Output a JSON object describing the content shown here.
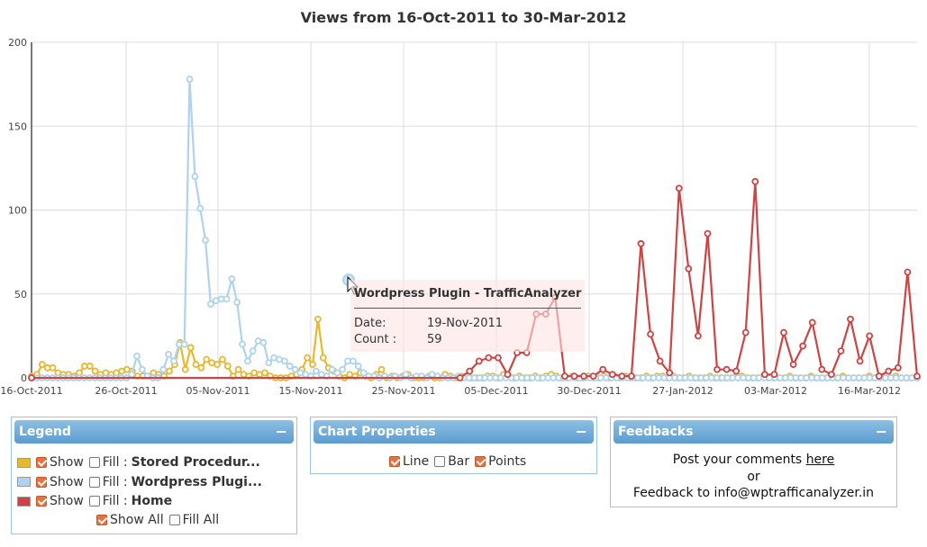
{
  "chart_data": {
    "type": "line",
    "title": "Views from 16-Oct-2011 to 30-Mar-2012",
    "xlabel": "",
    "ylabel": "",
    "ylim": [
      0,
      200
    ],
    "yticks": [
      0,
      50,
      100,
      150,
      200
    ],
    "grid": true,
    "x_start": "16-Oct-2011",
    "x_end": "30-Mar-2012",
    "xticks": [
      "16-Oct-2011",
      "26-Oct-2011",
      "05-Nov-2011",
      "15-Nov-2011",
      "25-Nov-2011",
      "05-Dec-2011",
      "30-Dec-2011",
      "27-Jan-2012",
      "03-Mar-2012",
      "16-Mar-2012"
    ],
    "series": [
      {
        "name": "Stored Procedur...",
        "color": "#e8b830",
        "values": [
          1,
          2,
          8,
          6,
          6,
          3,
          2,
          2,
          1,
          3,
          7,
          7,
          4,
          2,
          3,
          2,
          3,
          4,
          5,
          4,
          1,
          1,
          1,
          3,
          2,
          1,
          4,
          8,
          21,
          5,
          18,
          8,
          6,
          11,
          9,
          8,
          11,
          7,
          1,
          5,
          2,
          1,
          3,
          2,
          3,
          1,
          0,
          0,
          0,
          1,
          2,
          5,
          12,
          8,
          35,
          12,
          6,
          4,
          1,
          0,
          2,
          1,
          3,
          1,
          0,
          2,
          5,
          0,
          1,
          0,
          1,
          2,
          0,
          0,
          0,
          1,
          0,
          0,
          2,
          1,
          0,
          1,
          1,
          0,
          0,
          0,
          1,
          1,
          0,
          2,
          1,
          0,
          1,
          0,
          0,
          1,
          0,
          1,
          2,
          1,
          0,
          0,
          1,
          0,
          0,
          1,
          0,
          0,
          1,
          0,
          1,
          0,
          1,
          0,
          0,
          0,
          1,
          0,
          1,
          1,
          0,
          1,
          0,
          0,
          1,
          0,
          0,
          0,
          1,
          0,
          0,
          0,
          0,
          1,
          1,
          0,
          0,
          0,
          1,
          0,
          0,
          0,
          0,
          1,
          0,
          0,
          0,
          1,
          0,
          0,
          0,
          1,
          0,
          1,
          0,
          0,
          0,
          0,
          1,
          0,
          1,
          0,
          0,
          1,
          0,
          0,
          0,
          0
        ]
      },
      {
        "name": "Wordpress Plugi...",
        "color": "#aed3ec",
        "values": [
          0,
          0,
          0,
          0,
          0,
          0,
          0,
          0,
          0,
          0,
          0,
          0,
          0,
          0,
          0,
          0,
          0,
          0,
          0,
          2,
          13,
          5,
          1,
          0,
          0,
          5,
          14,
          10,
          20,
          20,
          178,
          120,
          101,
          82,
          44,
          46,
          47,
          47,
          59,
          45,
          20,
          10,
          16,
          22,
          21,
          9,
          12,
          11,
          10,
          7,
          5,
          3,
          2,
          1,
          4,
          2,
          1,
          5,
          3,
          5,
          10,
          10,
          7,
          3,
          1,
          1,
          0,
          1,
          0,
          1,
          0,
          2,
          0,
          1,
          1,
          0,
          2,
          1,
          0,
          0,
          0,
          1,
          0,
          0,
          0,
          0,
          0,
          0,
          0,
          0,
          0,
          0,
          0,
          0,
          0,
          0,
          0,
          0,
          0,
          0,
          0,
          0,
          0,
          0,
          0,
          0,
          0,
          0,
          0,
          0,
          0,
          0,
          0,
          0,
          0,
          0,
          0,
          0,
          0,
          0,
          0,
          0,
          0,
          0,
          0,
          0,
          0,
          0,
          0,
          0,
          0,
          0,
          0,
          0,
          0,
          0,
          0,
          0,
          0,
          0,
          0,
          0,
          0,
          0,
          0,
          0,
          0,
          0,
          0,
          0,
          0,
          0,
          0,
          0,
          0,
          0,
          0,
          0,
          0,
          0,
          0,
          0,
          0,
          0,
          0,
          0,
          0,
          0,
          0
        ]
      },
      {
        "name": "Home",
        "color": "#cc4444",
        "values": [
          0,
          0,
          0,
          0,
          0,
          0,
          0,
          0,
          0,
          0,
          0,
          0,
          0,
          0,
          0,
          0,
          0,
          0,
          0,
          0,
          0,
          0,
          0,
          0,
          0,
          0,
          0,
          0,
          0,
          0,
          0,
          0,
          0,
          0,
          0,
          0,
          0,
          0,
          0,
          0,
          0,
          0,
          0,
          0,
          0,
          0,
          0,
          0,
          0,
          0,
          0,
          0,
          0,
          0,
          0,
          0,
          0,
          0,
          0,
          0,
          0,
          0,
          0,
          0,
          0,
          0,
          0,
          0,
          0,
          0,
          0,
          0,
          0,
          0,
          0,
          0,
          0,
          0,
          0,
          0,
          0,
          0,
          0,
          0,
          0,
          0,
          0,
          0,
          0,
          0,
          0,
          0,
          0,
          0,
          0,
          0,
          0,
          0,
          0,
          0,
          0,
          0,
          0,
          0,
          0,
          0,
          0,
          0,
          0,
          0,
          0,
          0,
          0,
          0,
          0,
          0,
          0,
          0,
          0,
          0,
          0,
          0,
          0,
          0,
          0,
          0,
          0,
          0,
          0,
          0,
          0,
          0,
          0,
          0,
          0,
          0,
          0,
          0,
          0,
          0,
          0,
          0,
          0,
          0,
          0,
          0,
          0,
          0,
          0,
          0,
          0,
          0,
          0,
          0,
          0,
          0,
          0,
          0,
          0,
          0,
          0,
          0,
          0,
          0,
          0,
          0,
          0
        ],
        "segments_note": ""
      }
    ],
    "home_points": [
      [
        0,
        0
      ],
      [
        45,
        0
      ],
      [
        46,
        4
      ],
      [
        47,
        10
      ],
      [
        48,
        12
      ],
      [
        49,
        12
      ],
      [
        50,
        2
      ],
      [
        51,
        15
      ],
      [
        52,
        15
      ],
      [
        53,
        38
      ],
      [
        54,
        38
      ],
      [
        55,
        48
      ],
      [
        56,
        1
      ],
      [
        57,
        1
      ],
      [
        58,
        1
      ],
      [
        59,
        1
      ],
      [
        60,
        5
      ],
      [
        61,
        2
      ],
      [
        62,
        1
      ],
      [
        63,
        1
      ],
      [
        64,
        80
      ],
      [
        65,
        26
      ],
      [
        66,
        10
      ],
      [
        67,
        3
      ],
      [
        68,
        113
      ],
      [
        69,
        65
      ],
      [
        70,
        25
      ],
      [
        71,
        86
      ],
      [
        72,
        5
      ],
      [
        73,
        5
      ],
      [
        74,
        4
      ],
      [
        75,
        27
      ],
      [
        76,
        117
      ],
      [
        77,
        2
      ],
      [
        78,
        2
      ],
      [
        79,
        27
      ],
      [
        80,
        8
      ],
      [
        81,
        19
      ],
      [
        82,
        33
      ],
      [
        83,
        5
      ],
      [
        84,
        2
      ],
      [
        85,
        16
      ],
      [
        86,
        35
      ],
      [
        87,
        10
      ],
      [
        88,
        25
      ],
      [
        89,
        1
      ],
      [
        90,
        4
      ],
      [
        91,
        6
      ],
      [
        92,
        63
      ],
      [
        93,
        1
      ]
    ],
    "home_x_total": 93
  },
  "tooltip": {
    "series": "Wordpress Plugin - TrafficAnalyzer",
    "date_label": "Date:",
    "date_value": "19-Nov-2011",
    "count_label": "Count :",
    "count_value": "59"
  },
  "legend_panel": {
    "title": "Legend",
    "collapse": "−",
    "show_label": "Show",
    "fill_label": "Fill :",
    "show_all": "Show All",
    "fill_all": "Fill All",
    "rows": [
      {
        "name": "Stored Procedur...",
        "color": "#e8b830"
      },
      {
        "name": "Wordpress Plugi...",
        "color": "#aed3ec"
      },
      {
        "name": "Home",
        "color": "#cc4444"
      }
    ]
  },
  "properties_panel": {
    "title": "Chart Properties",
    "collapse": "−",
    "line": "Line",
    "bar": "Bar",
    "points": "Points"
  },
  "feedback_panel": {
    "title": "Feedbacks",
    "collapse": "−",
    "line1_prefix": "Post your comments ",
    "line1_link": "here",
    "line2": "or",
    "line3": "Feedback to info@wptrafficanalyzer.in"
  }
}
